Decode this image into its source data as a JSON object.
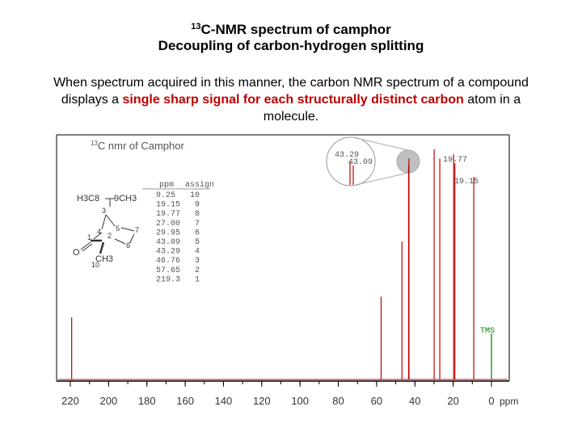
{
  "slide": {
    "title_sup": "13",
    "title_main": "C-NMR spectrum of camphor",
    "subtitle": "Decoupling of carbon-hydrogen splitting",
    "intro_part1": "When spectrum acquired in this manner, the carbon NMR spectrum of a compound displays a ",
    "intro_highlight1": "single sharp signal for each structurally distinct carbon",
    "intro_part2": " atom in a molecule.",
    "highlight_color": "#c00000"
  },
  "chart_data": {
    "type": "line",
    "title_sup": "13",
    "title": "C nmr of Camphor",
    "xlabel": "ppm",
    "xlim": [
      220,
      0
    ],
    "x_ticks": [
      "220",
      "200",
      "180",
      "160",
      "140",
      "120",
      "100",
      "80",
      "60",
      "40",
      "20",
      "0"
    ],
    "peaks": [
      {
        "ppm": 219.3,
        "height": 0.27
      },
      {
        "ppm": 57.65,
        "height": 0.36
      },
      {
        "ppm": 46.76,
        "height": 0.6
      },
      {
        "ppm": 43.29,
        "height": 0.93
      },
      {
        "ppm": 43.09,
        "height": 0.96
      },
      {
        "ppm": 29.95,
        "height": 1.0
      },
      {
        "ppm": 27.0,
        "height": 0.96
      },
      {
        "ppm": 19.77,
        "height": 0.98
      },
      {
        "ppm": 19.15,
        "height": 0.94
      },
      {
        "ppm": 9.25,
        "height": 0.88
      },
      {
        "ppm": 0,
        "height": 0.2,
        "color": "#008000"
      }
    ],
    "peak_labels": [
      {
        "text": "43.29",
        "ppm": 43.29
      },
      {
        "text": "43.09",
        "ppm": 43.09
      },
      {
        "text": "19.77",
        "ppm": 19.77
      },
      {
        "text": "19.15",
        "ppm": 19.15
      },
      {
        "text": "TMS",
        "ppm": 0,
        "color": "#008000"
      }
    ],
    "table": {
      "headers": [
        "ppm",
        "assign"
      ],
      "rows": [
        [
          "9.25",
          "10"
        ],
        [
          "19.15",
          "9"
        ],
        [
          "19.77",
          "8"
        ],
        [
          "27.00",
          "7"
        ],
        [
          "29.95",
          "6"
        ],
        [
          "43.09",
          "5"
        ],
        [
          "43.29",
          "4"
        ],
        [
          "46.76",
          "3"
        ],
        [
          "57.65",
          "2"
        ],
        [
          "219.3",
          "1"
        ]
      ]
    },
    "structure_labels": {
      "h3c8": "H3C8",
      "ch3_9": "9CH3",
      "c3": "3",
      "c4": "4",
      "c5": "5",
      "c7": "7",
      "c1": "1",
      "c2": "2",
      "c6": "6",
      "o": "O",
      "ch3_10": "CH3",
      "c10": "10"
    },
    "colors": {
      "spectrum": "#c00000",
      "tms": "#008000",
      "frame": "#000000",
      "zoom_fill": "#c0c0c0"
    }
  }
}
